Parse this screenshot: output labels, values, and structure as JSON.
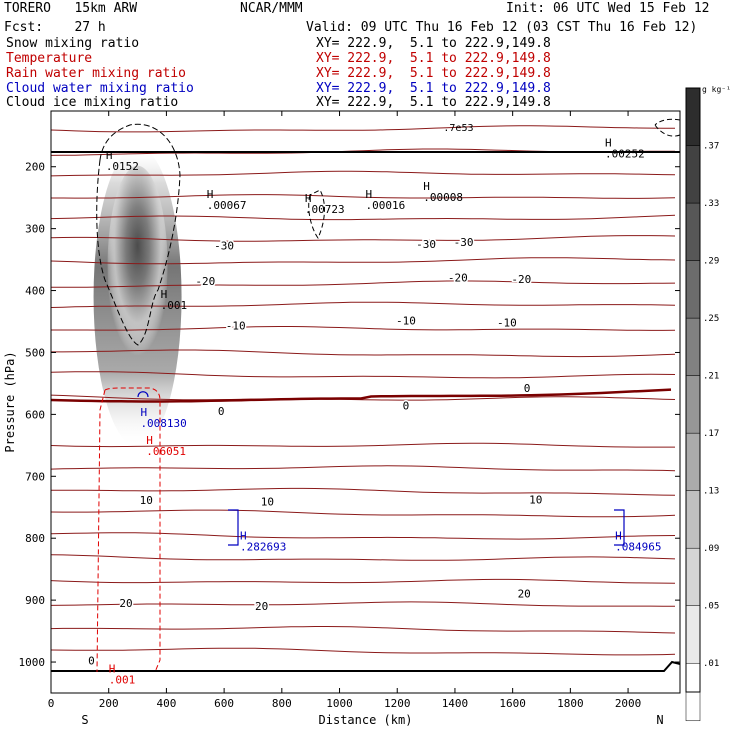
{
  "header": {
    "model": "TORERO   15km ARW",
    "org": "NCAR/MMM",
    "init": "Init: 06 UTC Wed 15 Feb 12",
    "fcst": "Fcst:    27 h",
    "valid": "Valid: 09 UTC Thu 16 Feb 12 (03 CST Thu 16 Feb 12)",
    "fields": [
      {
        "name": "Snow mixing ratio",
        "xy": "XY= 222.9,  5.1 to 222.9,149.8",
        "color": "#000000"
      },
      {
        "name": "Temperature",
        "xy": "XY= 222.9,  5.1 to 222.9,149.8",
        "color": "#c00000"
      },
      {
        "name": "Rain water mixing ratio",
        "xy": "XY= 222.9,  5.1 to 222.9,149.8",
        "color": "#c00000"
      },
      {
        "name": "Cloud water mixing ratio",
        "xy": "XY= 222.9,  5.1 to 222.9,149.8",
        "color": "#0000c0"
      },
      {
        "name": "Cloud ice mixing ratio",
        "xy": "XY= 222.9,  5.1 to 222.9,149.8",
        "color": "#000000"
      }
    ]
  },
  "chart_data": {
    "type": "cross-section contour",
    "xlabel": "Distance (km)",
    "ylabel": "Pressure (hPa)",
    "xlim": [
      0,
      2180
    ],
    "ylim": [
      1050,
      110
    ],
    "x_ticks": [
      0,
      200,
      400,
      600,
      800,
      1000,
      1200,
      1400,
      1600,
      1800,
      2000
    ],
    "y_ticks": [
      200,
      300,
      400,
      500,
      600,
      700,
      800,
      900,
      1000
    ],
    "x_end_labels": {
      "left": "S",
      "right": "N"
    },
    "colorbar": {
      "unit": "g kg⁻¹",
      "ticks": [
        ".01",
        ".05",
        ".09",
        ".13",
        ".17",
        ".21",
        ".25",
        ".29",
        ".33",
        ".37"
      ]
    },
    "temperature_labels": [
      {
        "x": 140,
        "p": 1004,
        "text": "0"
      },
      {
        "x": 590,
        "p": 601,
        "text": "0"
      },
      {
        "x": 1230,
        "p": 592,
        "text": "0"
      },
      {
        "x": 1650,
        "p": 564,
        "text": "0"
      },
      {
        "x": 330,
        "p": 745,
        "text": "10"
      },
      {
        "x": 750,
        "p": 747,
        "text": "10"
      },
      {
        "x": 1680,
        "p": 744,
        "text": "10"
      },
      {
        "x": 260,
        "p": 911,
        "text": "20"
      },
      {
        "x": 730,
        "p": 916,
        "text": "20"
      },
      {
        "x": 1640,
        "p": 896,
        "text": "20"
      },
      {
        "x": 640,
        "p": 463,
        "text": "-10"
      },
      {
        "x": 1230,
        "p": 455,
        "text": "-10"
      },
      {
        "x": 1580,
        "p": 458,
        "text": "-10"
      },
      {
        "x": 535,
        "p": 391,
        "text": "-20"
      },
      {
        "x": 1410,
        "p": 385,
        "text": "-20"
      },
      {
        "x": 1630,
        "p": 388,
        "text": "-20"
      },
      {
        "x": 600,
        "p": 334,
        "text": "-30"
      },
      {
        "x": 1300,
        "p": 331,
        "text": "-30"
      },
      {
        "x": 1430,
        "p": 328,
        "text": "-30"
      }
    ],
    "maxima": [
      {
        "x": 190,
        "p": 205,
        "label": ".0152",
        "field": "cloud ice"
      },
      {
        "x": 540,
        "p": 268,
        "label": ".00067",
        "field": "cloud ice"
      },
      {
        "x": 880,
        "p": 275,
        "label": ".00723",
        "field": "cloud ice"
      },
      {
        "x": 1090,
        "p": 268,
        "label": ".00016",
        "field": "cloud ice"
      },
      {
        "x": 1290,
        "p": 255,
        "label": ".00008",
        "field": "cloud ice"
      },
      {
        "x": 1920,
        "p": 185,
        "label": ".00252",
        "field": "cloud ice"
      },
      {
        "x": 380,
        "p": 430,
        "label": ".001",
        "field": "cloud ice"
      },
      {
        "x": 310,
        "p": 620,
        "label": ".008130",
        "field": "cloud water"
      },
      {
        "x": 330,
        "p": 666,
        "label": ".06051",
        "field": "rain water"
      },
      {
        "x": 655,
        "p": 820,
        "label": ".282693",
        "field": "cloud water"
      },
      {
        "x": 1955,
        "p": 820,
        "label": ".084965",
        "field": "cloud water"
      },
      {
        "x": 200,
        "p": 1035,
        "label": ".001",
        "field": "rain water"
      }
    ],
    "overlay_text": ".7e53"
  }
}
